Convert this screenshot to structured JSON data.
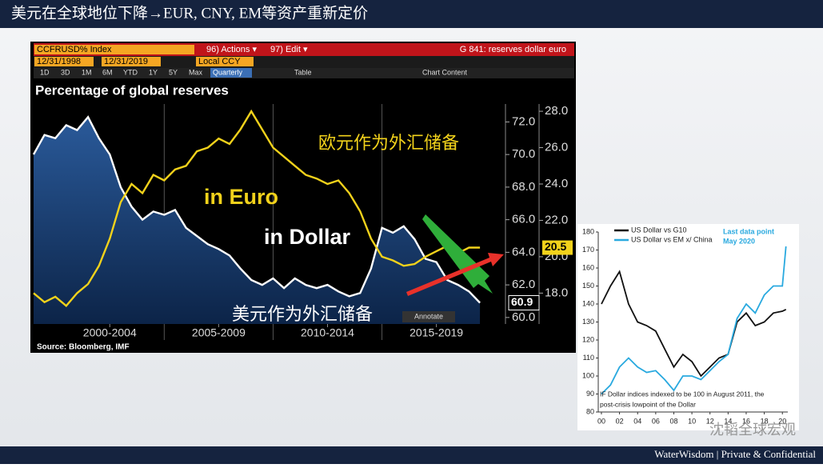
{
  "header": {
    "title": "美元在全球地位下降→EUR, CNY, EM等资产重新定价"
  },
  "footer": {
    "text": "WaterWisdom | Private & Confidential"
  },
  "watermark": "沈韬全球宏观",
  "chart_data": [
    {
      "type": "line",
      "toolbar": [
        "CCFRUSD% Index",
        "96) Actions ▾",
        "97) Edit ▾",
        "G 841: reserves dollar euro",
        "12/31/1998",
        "12/31/2019",
        "Local CCY",
        "1D",
        "3D",
        "1M",
        "6M",
        "YTD",
        "1Y",
        "5Y",
        "Max",
        "Quarterly",
        "Table",
        "Chart Content"
      ],
      "title": "Percentage of global reserves",
      "source": "Source: Bloomberg, IMF",
      "annotations": [
        "欧元作为外汇储备",
        "美元作为外汇储备",
        "Annotate"
      ],
      "x": [
        1999,
        1999.5,
        2000,
        2000.5,
        2001,
        2001.5,
        2002,
        2002.5,
        2003,
        2003.5,
        2004,
        2004.5,
        2005,
        2005.5,
        2006,
        2006.5,
        2007,
        2007.5,
        2008,
        2008.5,
        2009,
        2009.5,
        2010,
        2010.5,
        2011,
        2011.5,
        2012,
        2012.5,
        2013,
        2013.5,
        2014,
        2014.5,
        2015,
        2015.5,
        2016,
        2016.5,
        2017,
        2017.5,
        2018,
        2018.5,
        2019,
        2019.5
      ],
      "xlim": [
        1999,
        2020.6
      ],
      "xticks": [
        {
          "value": 2002.5,
          "label": "2000-2004"
        },
        {
          "value": 2007.5,
          "label": "2005-2009"
        },
        {
          "value": 2012.5,
          "label": "2010-2014"
        },
        {
          "value": 2017.5,
          "label": "2015-2019"
        }
      ],
      "ylim": [
        59.6,
        73.1
      ],
      "yticks": [
        {
          "value": 60,
          "label": "60.0"
        },
        {
          "value": 62,
          "label": "62.0"
        },
        {
          "value": 64,
          "label": "64.0"
        },
        {
          "value": 66,
          "label": "66.0"
        },
        {
          "value": 68,
          "label": "68.0"
        },
        {
          "value": 70,
          "label": "70.0"
        },
        {
          "value": 72,
          "label": "72.0"
        }
      ],
      "y2lim": [
        16.3,
        28.4
      ],
      "y2ticks": [
        {
          "value": 18,
          "label": "18.0"
        },
        {
          "value": 20,
          "label": "20.0"
        },
        {
          "value": 22,
          "label": "22.0"
        },
        {
          "value": 24,
          "label": "24.0"
        },
        {
          "value": 26,
          "label": "26.0"
        },
        {
          "value": 28,
          "label": "28.0"
        }
      ],
      "series": [
        {
          "name": "in Dollar",
          "color": "#ffffff",
          "area": true,
          "last_label": "60.9",
          "values": [
            70.0,
            71.2,
            71.0,
            71.8,
            71.5,
            72.3,
            71.0,
            70.0,
            68.0,
            66.8,
            66.0,
            66.5,
            66.3,
            66.6,
            65.5,
            65.0,
            64.5,
            64.2,
            63.8,
            63.0,
            62.3,
            62.0,
            62.4,
            61.8,
            62.4,
            62.0,
            61.8,
            62.0,
            61.6,
            61.3,
            61.5,
            63.0,
            65.5,
            65.2,
            65.6,
            64.8,
            63.6,
            63.4,
            62.3,
            62.0,
            61.6,
            60.9
          ]
        },
        {
          "name": "in Euro",
          "color": "#f2d21b",
          "axis": "y2",
          "last_label": "20.5",
          "values": [
            18.0,
            17.5,
            17.8,
            17.3,
            18.0,
            18.5,
            19.5,
            21.0,
            23.0,
            24.0,
            23.5,
            24.5,
            24.2,
            24.8,
            25.0,
            25.8,
            26.0,
            26.5,
            26.2,
            27.0,
            28.0,
            27.0,
            26.0,
            25.5,
            25.0,
            24.5,
            24.3,
            24.0,
            24.2,
            23.5,
            22.5,
            21.0,
            20.0,
            19.8,
            19.5,
            19.6,
            20.0,
            20.3,
            20.6,
            20.2,
            20.5,
            20.5
          ]
        }
      ]
    },
    {
      "type": "line",
      "annotations": [
        "Last data point",
        "May 2020",
        "IF Dollar indices indexed to be 100 in August 2011, the",
        "post-crisis lowpoint of the Dollar"
      ],
      "x": [
        2000,
        2001,
        2002,
        2003,
        2004,
        2005,
        2006,
        2007,
        2008,
        2009,
        2010,
        2011,
        2012,
        2013,
        2014,
        2015,
        2016,
        2017,
        2018,
        2019,
        2020,
        2020.4
      ],
      "xlim": [
        1999.65,
        2020.6
      ],
      "xticks": [
        {
          "value": 2000,
          "label": "00"
        },
        {
          "value": 2002,
          "label": "02"
        },
        {
          "value": 2004,
          "label": "04"
        },
        {
          "value": 2006,
          "label": "06"
        },
        {
          "value": 2008,
          "label": "08"
        },
        {
          "value": 2010,
          "label": "10"
        },
        {
          "value": 2012,
          "label": "12"
        },
        {
          "value": 2014,
          "label": "14"
        },
        {
          "value": 2016,
          "label": "16"
        },
        {
          "value": 2018,
          "label": "18"
        },
        {
          "value": 2020,
          "label": "20"
        }
      ],
      "ylim": [
        80,
        180
      ],
      "yticks": [
        80,
        90,
        100,
        110,
        120,
        130,
        140,
        150,
        160,
        170,
        180
      ],
      "series": [
        {
          "name": "US Dollar vs G10",
          "color": "#111111",
          "values": [
            140,
            150,
            158,
            140,
            130,
            128,
            125,
            115,
            105,
            112,
            108,
            100,
            105,
            110,
            112,
            130,
            135,
            128,
            130,
            135,
            136,
            137
          ]
        },
        {
          "name": "US Dollar vs EM x/ China",
          "color": "#29a9df",
          "values": [
            90,
            95,
            105,
            110,
            105,
            102,
            103,
            98,
            92,
            100,
            100,
            98,
            103,
            108,
            112,
            132,
            140,
            135,
            145,
            150,
            150,
            172
          ]
        }
      ]
    }
  ]
}
